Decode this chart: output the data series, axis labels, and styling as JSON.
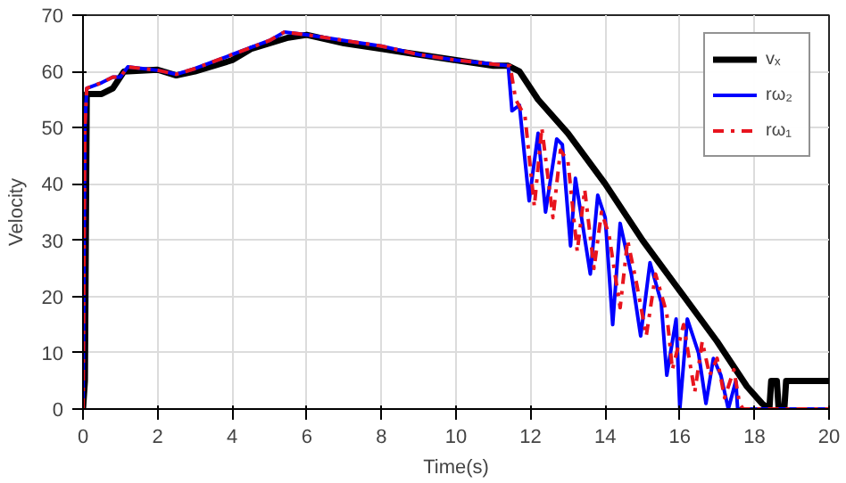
{
  "chart_data": {
    "type": "line",
    "xlabel": "Time(s)",
    "ylabel": "Velocity",
    "xlim": [
      0,
      20
    ],
    "ylim": [
      0,
      70
    ],
    "xticks": [
      0,
      2,
      4,
      6,
      8,
      10,
      12,
      14,
      16,
      18,
      20
    ],
    "yticks": [
      0,
      10,
      20,
      30,
      40,
      50,
      60,
      70
    ],
    "grid": true,
    "legend": "top right",
    "series": [
      {
        "name": "vₓ",
        "color": "#000000",
        "line_style": "solid",
        "x": [
          0,
          0.05,
          0.1,
          0.5,
          0.8,
          0.9,
          1.1,
          2,
          2.5,
          3,
          4,
          4.5,
          5.5,
          6,
          7,
          8,
          9,
          10,
          11,
          11.4,
          11.7,
          12.2,
          13,
          14,
          15,
          16,
          17,
          17.8,
          18.2,
          18.4,
          18.45,
          18.6,
          18.65,
          18.8,
          18.85,
          20
        ],
        "values": [
          0,
          5,
          56,
          56,
          57,
          58,
          60,
          60.3,
          59.3,
          60,
          62,
          64,
          66,
          66.5,
          65,
          64,
          63,
          62,
          61,
          61,
          60,
          55,
          49,
          40,
          30,
          21,
          12,
          4,
          1,
          0,
          5,
          5,
          0,
          0,
          5,
          5
        ]
      },
      {
        "name": "rω₂",
        "color": "#0000ff",
        "line_style": "solid",
        "x": [
          0,
          0.05,
          0.1,
          0.5,
          0.8,
          1.0,
          1.2,
          2,
          2.5,
          3,
          4,
          5,
          5.4,
          6,
          7,
          8,
          9,
          10,
          11,
          11.4,
          11.5,
          11.7,
          11.96,
          12.2,
          12.4,
          12.7,
          12.85,
          13.07,
          13.2,
          13.6,
          13.8,
          14,
          14.2,
          14.4,
          14.7,
          14.95,
          15.2,
          15.5,
          15.65,
          15.9,
          16,
          16.2,
          16.5,
          16.7,
          16.9,
          17.1,
          17.3,
          17.5,
          17.55,
          20
        ],
        "values": [
          0,
          50,
          57,
          58,
          59,
          59,
          60.8,
          60.2,
          59.5,
          60.5,
          63,
          65.5,
          67,
          66.5,
          65.5,
          64.5,
          63,
          62,
          61.3,
          61,
          53,
          54,
          37,
          49,
          35,
          48,
          47,
          29,
          41,
          24,
          38,
          34,
          15,
          33,
          24,
          13,
          26,
          19,
          6,
          16,
          0,
          16,
          10,
          1,
          9,
          6,
          0,
          5,
          0,
          0
        ]
      },
      {
        "name": "rω₁",
        "color": "#e8141e",
        "line_style": "dashed",
        "x": [
          0,
          0.05,
          0.1,
          0.5,
          0.8,
          1.0,
          1.2,
          2,
          2.5,
          3,
          4,
          5,
          5.4,
          6,
          7,
          8,
          9,
          10,
          11,
          11.45,
          11.6,
          11.85,
          12.1,
          12.3,
          12.6,
          12.8,
          13,
          13.25,
          13.45,
          13.7,
          13.9,
          14.1,
          14.4,
          14.6,
          14.85,
          15.1,
          15.35,
          15.65,
          15.8,
          16.1,
          16.4,
          16.6,
          16.8,
          17,
          17.2,
          17.45,
          17.6,
          17.7,
          20
        ],
        "values": [
          0,
          50,
          57,
          58,
          59,
          59,
          60.8,
          60.2,
          59.5,
          60.5,
          63,
          65.5,
          67,
          66.5,
          65.5,
          64.5,
          63,
          62,
          61.3,
          61,
          55,
          52,
          36,
          50,
          34,
          46,
          44,
          28,
          39,
          25,
          35,
          31,
          18,
          30,
          22,
          13,
          24,
          17,
          7,
          15,
          3,
          12,
          6,
          9,
          2,
          7,
          1,
          0,
          0
        ]
      }
    ]
  }
}
